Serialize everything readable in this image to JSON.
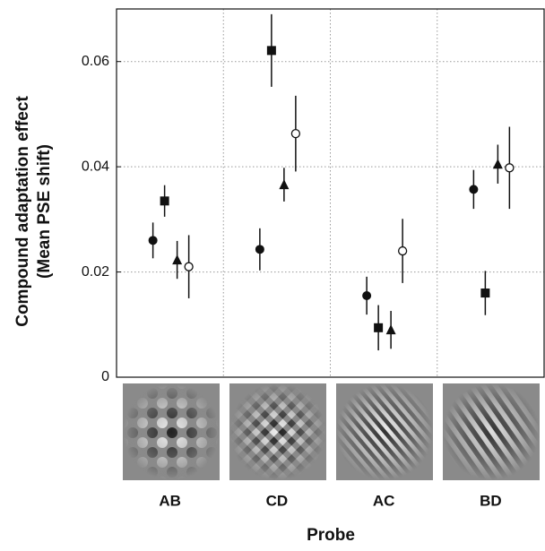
{
  "chart_data": {
    "type": "scatter-errorbar",
    "ylabel": [
      "Compound adaptation effect",
      "(Mean PSE shift)"
    ],
    "xlabel": "Probe",
    "categories": [
      "AB",
      "CD",
      "AC",
      "BD"
    ],
    "ylim": [
      0,
      0.07
    ],
    "yticks": [
      0,
      0.02,
      0.04,
      0.06
    ],
    "grid": true,
    "series": [
      {
        "marker": "circle",
        "color": "#111111",
        "values": [
          0.026,
          0.0243,
          0.0155,
          0.0357
        ],
        "errors": [
          0.0034,
          0.004,
          0.0036,
          0.0037
        ]
      },
      {
        "marker": "square",
        "color": "#111111",
        "values": [
          0.0335,
          0.0621,
          0.0094,
          0.016
        ],
        "errors": [
          0.003,
          0.0069,
          0.0043,
          0.0042
        ]
      },
      {
        "marker": "triangle",
        "color": "#111111",
        "values": [
          0.0223,
          0.0366,
          0.009,
          0.0405
        ],
        "errors": [
          0.0036,
          0.0032,
          0.0036,
          0.0037
        ]
      },
      {
        "marker": "open-circle",
        "color": "#111111",
        "values": [
          0.021,
          0.0463,
          0.024,
          0.0398
        ],
        "errors": [
          0.006,
          0.0072,
          0.0061,
          0.0078
        ]
      }
    ]
  }
}
